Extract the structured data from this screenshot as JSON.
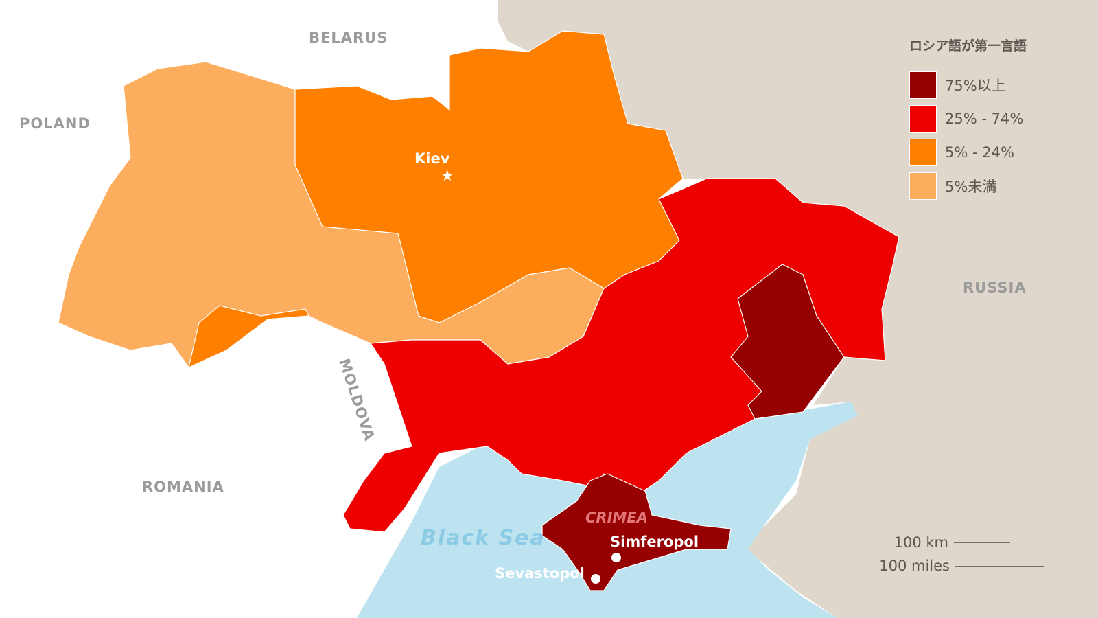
{
  "colors": {
    "over_75": "#960000",
    "25_74": "#ee0000",
    "5_24": "#ff8000",
    "under_5": "#fdad5e",
    "russia_bg": "#dfd7cb",
    "sea": "#bde3f0",
    "land": "#ffffff"
  },
  "labels": {
    "belarus": "BELARUS",
    "poland": "POLAND",
    "russia": "RUSSIA",
    "moldova": "MOLDOVA",
    "romania": "ROMANIA",
    "crimea": "CRIMEA",
    "black_sea": "Black Sea"
  },
  "cities": {
    "kiev": "Kiev",
    "simferopol": "Simferopol",
    "sevastopol": "Sevastopol"
  },
  "legend": {
    "title": "ロシア語が第一言語",
    "items": [
      {
        "label": "75%以上",
        "color": "#960000"
      },
      {
        "label": "25% - 74%",
        "color": "#ee0000"
      },
      {
        "label": "5% - 24%",
        "color": "#ff8000"
      },
      {
        "label": "5%未満",
        "color": "#fdad5e"
      }
    ]
  },
  "scale": {
    "km": "100 km",
    "miles": "100 miles"
  }
}
